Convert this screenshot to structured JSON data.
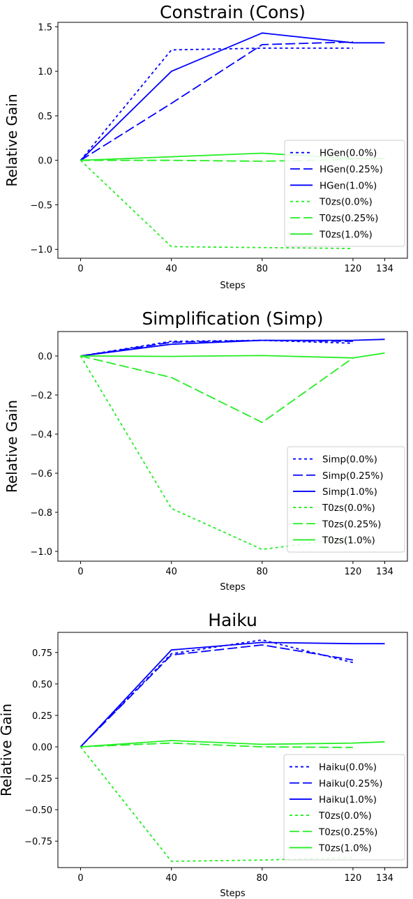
{
  "chart_data": [
    {
      "type": "line",
      "title": "Constrain (Cons)",
      "xlabel": "Steps",
      "ylabel": "Relative Gain",
      "xticks": [
        0,
        40,
        80,
        120,
        134
      ],
      "xlim": [
        -10,
        144
      ],
      "yticks": [
        -1.0,
        -0.5,
        0.0,
        0.5,
        1.0,
        1.5
      ],
      "ytick_labels": [
        "−1.0",
        "−0.5",
        "0.0",
        "0.5",
        "1.0",
        "1.5"
      ],
      "ylim": [
        -1.1,
        1.55
      ],
      "legend": "lower-right",
      "series": [
        {
          "name": "HGen(0.0%)",
          "color": "#0000ff",
          "dash": "short",
          "x": [
            0,
            40,
            80,
            120
          ],
          "y": [
            0.0,
            1.24,
            1.26,
            1.26
          ]
        },
        {
          "name": "HGen(0.25%)",
          "color": "#0000ff",
          "dash": "long",
          "x": [
            0,
            40,
            80,
            120
          ],
          "y": [
            0.0,
            0.64,
            1.3,
            1.33
          ]
        },
        {
          "name": "HGen(1.0%)",
          "color": "#0000ff",
          "dash": "solid",
          "x": [
            0,
            40,
            80,
            120,
            134
          ],
          "y": [
            0.0,
            1.0,
            1.43,
            1.32,
            1.32
          ]
        },
        {
          "name": "T0zs(0.0%)",
          "color": "#22ee22",
          "dash": "short",
          "x": [
            0,
            40,
            80,
            120
          ],
          "y": [
            0.0,
            -0.97,
            -0.98,
            -0.99
          ]
        },
        {
          "name": "T0zs(0.25%)",
          "color": "#22ee22",
          "dash": "long",
          "x": [
            0,
            40,
            80,
            120
          ],
          "y": [
            0.0,
            0.0,
            -0.01,
            0.01
          ]
        },
        {
          "name": "T0zs(1.0%)",
          "color": "#22ee22",
          "dash": "solid",
          "x": [
            0,
            40,
            80,
            120,
            134
          ],
          "y": [
            0.0,
            0.04,
            0.08,
            0.02,
            0.02
          ]
        }
      ]
    },
    {
      "type": "line",
      "title": "Simplification (Simp)",
      "xlabel": "Steps",
      "ylabel": "Relative Gain",
      "xticks": [
        0,
        40,
        80,
        120,
        134
      ],
      "xlim": [
        -10,
        144
      ],
      "yticks": [
        -1.0,
        -0.8,
        -0.6,
        -0.4,
        -0.2,
        0.0
      ],
      "ytick_labels": [
        "−1.0",
        "−0.8",
        "−0.6",
        "−0.4",
        "−0.2",
        "0.0"
      ],
      "ylim": [
        -1.05,
        0.125
      ],
      "legend": "lower-right",
      "series": [
        {
          "name": "Simp(0.0%)",
          "color": "#0000ff",
          "dash": "short",
          "x": [
            0,
            40,
            80,
            120
          ],
          "y": [
            0.0,
            0.075,
            0.08,
            0.065
          ]
        },
        {
          "name": "Simp(0.25%)",
          "color": "#0000ff",
          "dash": "long",
          "x": [
            0,
            40,
            80,
            120
          ],
          "y": [
            0.0,
            0.07,
            0.08,
            0.075
          ]
        },
        {
          "name": "Simp(1.0%)",
          "color": "#0000ff",
          "dash": "solid",
          "x": [
            0,
            40,
            80,
            120,
            134
          ],
          "y": [
            0.0,
            0.06,
            0.08,
            0.08,
            0.085
          ]
        },
        {
          "name": "T0zs(0.0%)",
          "color": "#22ee22",
          "dash": "short",
          "x": [
            0,
            40,
            80,
            120
          ],
          "y": [
            0.0,
            -0.78,
            -0.99,
            -0.93
          ]
        },
        {
          "name": "T0zs(0.25%)",
          "color": "#22ee22",
          "dash": "long",
          "x": [
            0,
            40,
            80,
            120
          ],
          "y": [
            0.0,
            -0.11,
            -0.34,
            -0.01
          ]
        },
        {
          "name": "T0zs(1.0%)",
          "color": "#22ee22",
          "dash": "solid",
          "x": [
            0,
            40,
            80,
            120,
            134
          ],
          "y": [
            0.0,
            -0.002,
            0.002,
            -0.01,
            0.015
          ]
        }
      ]
    },
    {
      "type": "line",
      "title": "Haiku",
      "xlabel": "Steps",
      "ylabel": "Relative Gain",
      "xticks": [
        0,
        40,
        80,
        120,
        134
      ],
      "xlim": [
        -10,
        144
      ],
      "yticks": [
        -0.75,
        -0.5,
        -0.25,
        0.0,
        0.25,
        0.5,
        0.75
      ],
      "ytick_labels": [
        "−0.75",
        "−0.50",
        "−0.25",
        "0.00",
        "0.25",
        "0.50",
        "0.75"
      ],
      "ylim": [
        -0.96,
        0.91
      ],
      "legend": "lower-right",
      "series": [
        {
          "name": "Haiku(0.0%)",
          "color": "#0000ff",
          "dash": "short",
          "x": [
            0,
            40,
            80,
            120
          ],
          "y": [
            0.0,
            0.74,
            0.85,
            0.67
          ]
        },
        {
          "name": "Haiku(0.25%)",
          "color": "#0000ff",
          "dash": "long",
          "x": [
            0,
            40,
            80,
            120
          ],
          "y": [
            0.0,
            0.73,
            0.81,
            0.69
          ]
        },
        {
          "name": "Haiku(1.0%)",
          "color": "#0000ff",
          "dash": "solid",
          "x": [
            0,
            40,
            80,
            120,
            134
          ],
          "y": [
            0.0,
            0.77,
            0.83,
            0.82,
            0.82
          ]
        },
        {
          "name": "T0zs(0.0%)",
          "color": "#22ee22",
          "dash": "short",
          "x": [
            0,
            40,
            80,
            120
          ],
          "y": [
            0.0,
            -0.91,
            -0.9,
            -0.88
          ]
        },
        {
          "name": "T0zs(0.25%)",
          "color": "#22ee22",
          "dash": "long",
          "x": [
            0,
            40,
            80,
            120
          ],
          "y": [
            0.0,
            0.03,
            0.0,
            -0.005
          ]
        },
        {
          "name": "T0zs(1.0%)",
          "color": "#22ee22",
          "dash": "solid",
          "x": [
            0,
            40,
            80,
            120,
            134
          ],
          "y": [
            0.0,
            0.05,
            0.02,
            0.03,
            0.04
          ]
        }
      ]
    }
  ]
}
